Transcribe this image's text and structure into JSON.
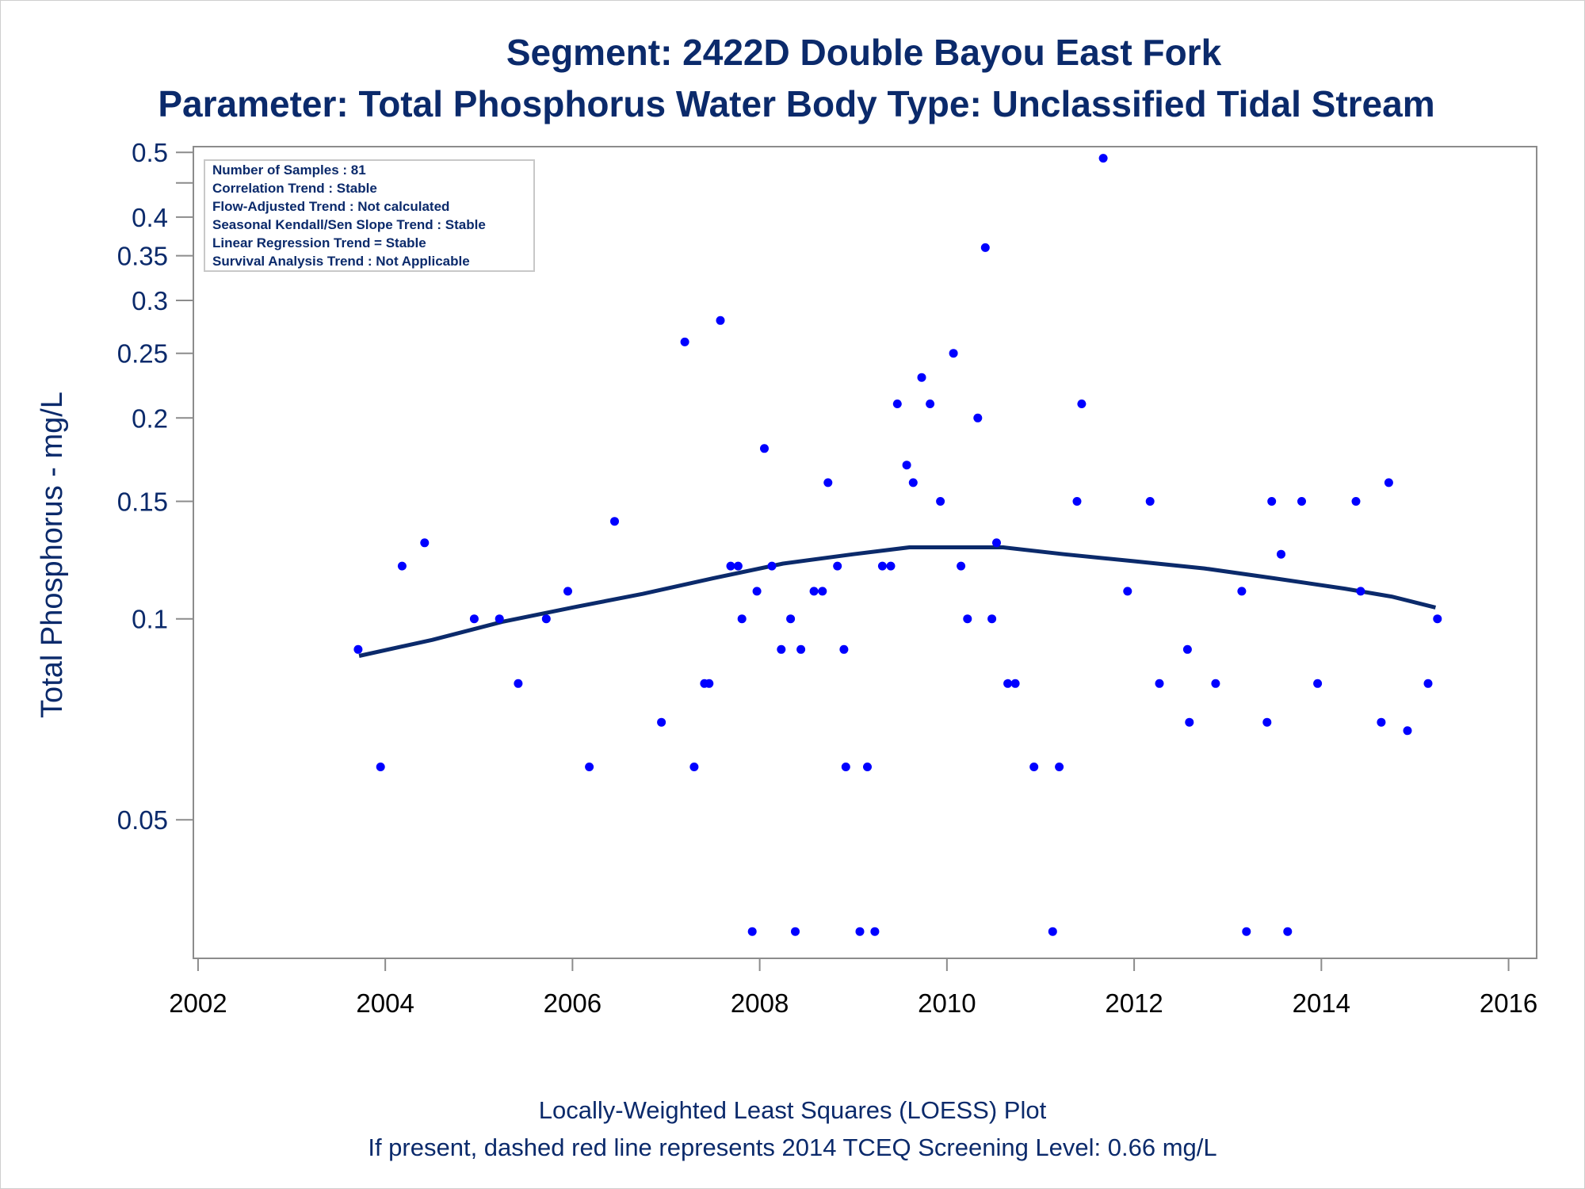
{
  "chart_data": {
    "type": "scatter",
    "title": "Segment: 2422D  Double Bayou East Fork",
    "subtitle": "Parameter: Total Phosphorus   Water Body Type: Unclassified Tidal Stream",
    "xlabel": "",
    "ylabel": "Total Phosphorus - mg/L",
    "footnote1": "Locally-Weighted Least Squares (LOESS) Plot",
    "footnote2": "If present, dashed red line represents 2014 TCEQ Screening Level: 0.66 mg/L",
    "stats": [
      "Number of Samples : 81",
      "Correlation Trend : Stable",
      "Flow-Adjusted Trend : Not calculated",
      "Seasonal Kendall/Sen Slope Trend : Stable",
      "Linear Regression Trend = Stable",
      "Survival Analysis Trend : Not Applicable"
    ],
    "x_ticks": [
      "2002",
      "2004",
      "2006",
      "2008",
      "2010",
      "2012",
      "2014",
      "2016"
    ],
    "y_ticks": [
      "0.05",
      "0.1",
      "0.15",
      "0.2",
      "0.25",
      "0.3",
      "0.35",
      "0.4",
      "0.5"
    ],
    "xlim": [
      2001.95,
      2016.3
    ],
    "ylim": [
      0.031,
      0.51
    ],
    "y_scale": "log",
    "points": [
      {
        "x": 2003.71,
        "y": 0.09
      },
      {
        "x": 2003.95,
        "y": 0.06
      },
      {
        "x": 2004.18,
        "y": 0.12
      },
      {
        "x": 2004.42,
        "y": 0.13
      },
      {
        "x": 2004.95,
        "y": 0.1
      },
      {
        "x": 2005.22,
        "y": 0.1
      },
      {
        "x": 2005.42,
        "y": 0.08
      },
      {
        "x": 2005.72,
        "y": 0.1
      },
      {
        "x": 2005.95,
        "y": 0.11
      },
      {
        "x": 2006.18,
        "y": 0.06
      },
      {
        "x": 2006.45,
        "y": 0.14
      },
      {
        "x": 2006.95,
        "y": 0.07
      },
      {
        "x": 2007.2,
        "y": 0.26
      },
      {
        "x": 2007.3,
        "y": 0.06
      },
      {
        "x": 2007.41,
        "y": 0.08
      },
      {
        "x": 2007.46,
        "y": 0.08
      },
      {
        "x": 2007.58,
        "y": 0.28
      },
      {
        "x": 2007.69,
        "y": 0.12
      },
      {
        "x": 2007.77,
        "y": 0.12
      },
      {
        "x": 2007.81,
        "y": 0.1
      },
      {
        "x": 2007.92,
        "y": 0.034
      },
      {
        "x": 2007.97,
        "y": 0.11
      },
      {
        "x": 2008.05,
        "y": 0.18
      },
      {
        "x": 2008.13,
        "y": 0.12
      },
      {
        "x": 2008.23,
        "y": 0.09
      },
      {
        "x": 2008.33,
        "y": 0.1
      },
      {
        "x": 2008.38,
        "y": 0.034
      },
      {
        "x": 2008.44,
        "y": 0.09
      },
      {
        "x": 2008.58,
        "y": 0.11
      },
      {
        "x": 2008.67,
        "y": 0.11
      },
      {
        "x": 2008.73,
        "y": 0.16
      },
      {
        "x": 2008.83,
        "y": 0.12
      },
      {
        "x": 2008.9,
        "y": 0.09
      },
      {
        "x": 2008.92,
        "y": 0.06
      },
      {
        "x": 2009.07,
        "y": 0.034
      },
      {
        "x": 2009.15,
        "y": 0.06
      },
      {
        "x": 2009.23,
        "y": 0.034
      },
      {
        "x": 2009.31,
        "y": 0.12
      },
      {
        "x": 2009.4,
        "y": 0.12
      },
      {
        "x": 2009.47,
        "y": 0.21
      },
      {
        "x": 2009.57,
        "y": 0.17
      },
      {
        "x": 2009.64,
        "y": 0.16
      },
      {
        "x": 2009.73,
        "y": 0.23
      },
      {
        "x": 2009.82,
        "y": 0.21
      },
      {
        "x": 2009.93,
        "y": 0.15
      },
      {
        "x": 2010.07,
        "y": 0.25
      },
      {
        "x": 2010.15,
        "y": 0.12
      },
      {
        "x": 2010.22,
        "y": 0.1
      },
      {
        "x": 2010.33,
        "y": 0.2
      },
      {
        "x": 2010.41,
        "y": 0.36
      },
      {
        "x": 2010.48,
        "y": 0.1
      },
      {
        "x": 2010.53,
        "y": 0.13
      },
      {
        "x": 2010.65,
        "y": 0.08
      },
      {
        "x": 2010.73,
        "y": 0.08
      },
      {
        "x": 2010.93,
        "y": 0.06
      },
      {
        "x": 2011.13,
        "y": 0.034
      },
      {
        "x": 2011.2,
        "y": 0.06
      },
      {
        "x": 2011.39,
        "y": 0.15
      },
      {
        "x": 2011.44,
        "y": 0.21
      },
      {
        "x": 2011.67,
        "y": 0.49
      },
      {
        "x": 2011.93,
        "y": 0.11
      },
      {
        "x": 2012.17,
        "y": 0.15
      },
      {
        "x": 2012.27,
        "y": 0.08
      },
      {
        "x": 2012.57,
        "y": 0.09
      },
      {
        "x": 2012.59,
        "y": 0.07
      },
      {
        "x": 2012.87,
        "y": 0.08
      },
      {
        "x": 2013.15,
        "y": 0.11
      },
      {
        "x": 2013.2,
        "y": 0.034
      },
      {
        "x": 2013.42,
        "y": 0.07
      },
      {
        "x": 2013.47,
        "y": 0.15
      },
      {
        "x": 2013.57,
        "y": 0.125
      },
      {
        "x": 2013.64,
        "y": 0.034
      },
      {
        "x": 2013.79,
        "y": 0.15
      },
      {
        "x": 2013.96,
        "y": 0.08
      },
      {
        "x": 2014.37,
        "y": 0.15
      },
      {
        "x": 2014.42,
        "y": 0.11
      },
      {
        "x": 2014.64,
        "y": 0.07
      },
      {
        "x": 2014.72,
        "y": 0.16
      },
      {
        "x": 2014.92,
        "y": 0.068
      },
      {
        "x": 2015.14,
        "y": 0.08
      },
      {
        "x": 2015.24,
        "y": 0.1
      }
    ],
    "loess": [
      {
        "x": 2003.72,
        "y": 0.088
      },
      {
        "x": 2004.5,
        "y": 0.093
      },
      {
        "x": 2005.25,
        "y": 0.099
      },
      {
        "x": 2006.0,
        "y": 0.104
      },
      {
        "x": 2006.75,
        "y": 0.109
      },
      {
        "x": 2007.5,
        "y": 0.115
      },
      {
        "x": 2008.25,
        "y": 0.121
      },
      {
        "x": 2009.0,
        "y": 0.125
      },
      {
        "x": 2009.6,
        "y": 0.128
      },
      {
        "x": 2010.0,
        "y": 0.128
      },
      {
        "x": 2010.6,
        "y": 0.128
      },
      {
        "x": 2011.25,
        "y": 0.125
      },
      {
        "x": 2012.0,
        "y": 0.122
      },
      {
        "x": 2012.75,
        "y": 0.119
      },
      {
        "x": 2013.5,
        "y": 0.115
      },
      {
        "x": 2014.25,
        "y": 0.111
      },
      {
        "x": 2014.75,
        "y": 0.108
      },
      {
        "x": 2015.22,
        "y": 0.104
      }
    ],
    "colors": {
      "title": "#0b2a6b",
      "points": "#0000ff",
      "loess": "#0b2a6b",
      "axis": "#8c8c8c"
    }
  }
}
